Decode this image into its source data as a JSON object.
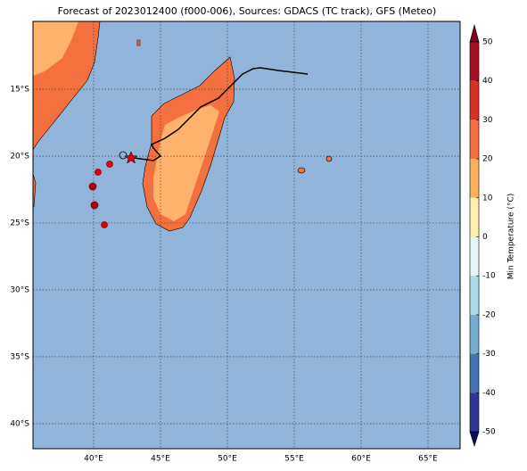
{
  "title": "Forecast of 2023012400 (f000-006), Sources: GDACS (TC track), GFS (Meteo)",
  "map": {
    "ocean_color": "#91b5da",
    "land_colors": [
      "#f4703f",
      "#fdb36b"
    ],
    "lon_ticks": [
      {
        "value": 40,
        "label": "40°E"
      },
      {
        "value": 45,
        "label": "45°E"
      },
      {
        "value": 50,
        "label": "50°E"
      },
      {
        "value": 55,
        "label": "55°E"
      },
      {
        "value": 60,
        "label": "60°E"
      },
      {
        "value": 65,
        "label": "65°E"
      }
    ],
    "lat_ticks": [
      {
        "value": -15,
        "label": "15°S"
      },
      {
        "value": -20,
        "label": "20°S"
      },
      {
        "value": -25,
        "label": "25°S"
      },
      {
        "value": -30,
        "label": "30°S"
      },
      {
        "value": -35,
        "label": "35°S"
      },
      {
        "value": -40,
        "label": "40°S"
      }
    ],
    "lonlim": [
      35.47,
      67.4
    ],
    "latlim": [
      -9.93,
      -41.87
    ]
  },
  "colorbar": {
    "label": "Min Temperature (°C)",
    "ticks": [
      50,
      40,
      30,
      20,
      10,
      0,
      -10,
      -20,
      -30,
      -40,
      -50
    ],
    "colors": [
      "#800020",
      "#a50f23",
      "#d73027",
      "#f46d43",
      "#fdae61",
      "#fef0b0",
      "#e6f5f9",
      "#abd9e9",
      "#74add1",
      "#4575b4",
      "#313695",
      "#0b0b6e"
    ]
  }
}
